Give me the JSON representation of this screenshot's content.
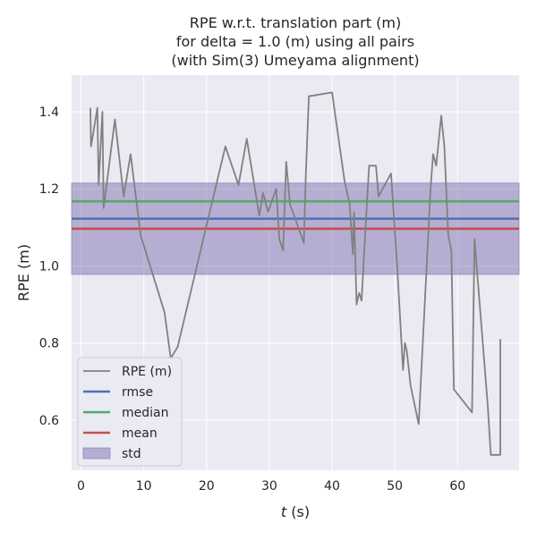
{
  "chart_data": {
    "type": "line",
    "title_lines": [
      "RPE w.r.t. translation part (m)",
      "for delta = 1.0 (m) using all pairs",
      "(with Sim(3) Umeyama alignment)"
    ],
    "xlabel": "t (s)",
    "xlabel_var": "t",
    "xlabel_unit": " (s)",
    "ylabel": "RPE (m)",
    "xlim": [
      -1.5,
      69.8
    ],
    "ylim": [
      0.47,
      1.495
    ],
    "xticks": [
      0,
      10,
      20,
      30,
      40,
      50,
      60
    ],
    "yticks": [
      0.6,
      0.8,
      1.0,
      1.2,
      1.4
    ],
    "ytick_labels": [
      "0.6",
      "0.8",
      "1.0",
      "1.2",
      "1.4"
    ],
    "grid": true,
    "legend_placement": "lower-left",
    "colors": {
      "axes_bg": "#eaeaf2",
      "grid": "#ffffff",
      "series": "#808080",
      "rmse": "#4c72b0",
      "median": "#55a868",
      "mean": "#c44e52",
      "std": "#8172b2"
    },
    "series": [
      {
        "name": "RPE (m)",
        "x": [
          1.5,
          1.6,
          2.6,
          2.8,
          3.4,
          3.6,
          5.4,
          6.8,
          7.9,
          9.5,
          13.3,
          14.3,
          15.4,
          23.0,
          25.1,
          26.4,
          27.6,
          28.4,
          29.0,
          29.8,
          31.1,
          31.6,
          32.2,
          32.7,
          33.3,
          34.4,
          35.5,
          35.8,
          36.3,
          40.0,
          42.0,
          42.8,
          43.3,
          43.5,
          43.9,
          44.3,
          44.7,
          45.3,
          45.9,
          47.0,
          47.4,
          49.4,
          50.4,
          51.3,
          51.6,
          51.9,
          52.5,
          53.8,
          55.7,
          56.1,
          56.6,
          57.4,
          57.9,
          58.5,
          59.0,
          59.4,
          62.3,
          62.7,
          64.8,
          65.3,
          66.8
        ],
        "y": [
          1.41,
          1.31,
          1.41,
          1.21,
          1.4,
          1.15,
          1.38,
          1.18,
          1.29,
          1.08,
          0.88,
          0.76,
          0.79,
          1.31,
          1.21,
          1.33,
          1.21,
          1.13,
          1.19,
          1.14,
          1.2,
          1.07,
          1.04,
          1.27,
          1.16,
          1.11,
          1.06,
          1.23,
          1.44,
          1.45,
          1.22,
          1.16,
          1.03,
          1.14,
          0.9,
          0.93,
          0.91,
          1.09,
          1.26,
          1.26,
          1.18,
          1.24,
          0.99,
          0.73,
          0.8,
          0.78,
          0.69,
          0.59,
          1.2,
          1.29,
          1.26,
          1.39,
          1.31,
          1.08,
          1.04,
          0.68,
          0.62,
          1.07,
          0.64,
          0.51,
          0.51
        ],
        "x_tail": [
          66.8
        ],
        "y_tail": [
          0.81
        ]
      }
    ],
    "stats": {
      "rmse": 1.1225,
      "median": 1.1675,
      "mean": 1.0965,
      "std": 0.1185
    },
    "legend": [
      {
        "key": "series",
        "label": "RPE (m)",
        "kind": "line"
      },
      {
        "key": "rmse",
        "label": "rmse",
        "kind": "line"
      },
      {
        "key": "median",
        "label": "median",
        "kind": "line"
      },
      {
        "key": "mean",
        "label": "mean",
        "kind": "line"
      },
      {
        "key": "std",
        "label": "std",
        "kind": "patch"
      }
    ]
  }
}
